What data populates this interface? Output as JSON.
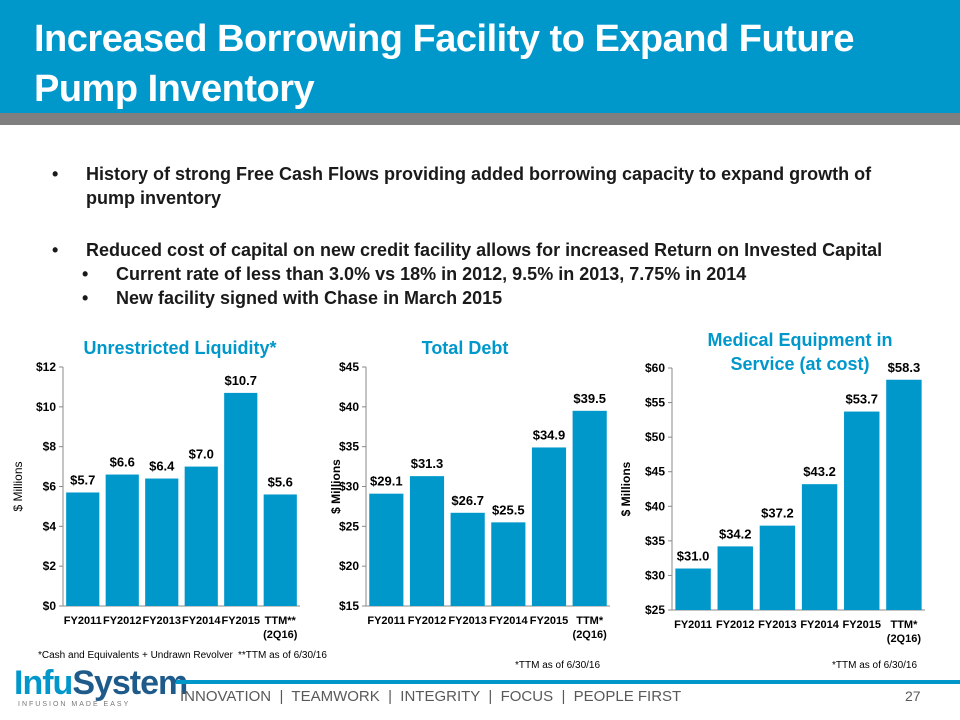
{
  "title": "Increased Borrowing Facility to Expand Future Pump Inventory",
  "bullets": [
    "History of strong Free Cash Flows providing added borrowing capacity to expand growth of pump inventory",
    "Reduced cost of capital on new credit facility allows for increased Return on Invested Capital"
  ],
  "sub_bullets": [
    "Current rate of less than 3.0% vs 18% in 2012, 9.5% in 2013, 7.75% in 2014",
    "New facility signed with Chase in March 2015"
  ],
  "bullet_glyph": "•",
  "colors": {
    "header": "#0097CB",
    "bar": "#0097CB",
    "header_rule": "#7f7f7f"
  },
  "chart_data": [
    {
      "type": "bar",
      "title": "Unrestricted Liquidity*",
      "ylabel": "$ Millions",
      "categories": [
        "FY2011",
        "FY2012",
        "FY2013",
        "FY2014",
        "FY2015",
        "TTM**\n(2Q16)"
      ],
      "values": [
        5.7,
        6.6,
        6.4,
        7.0,
        10.7,
        5.6
      ],
      "data_labels": [
        "$5.7",
        "$6.6",
        "$6.4",
        "$7.0",
        "$10.7",
        "$5.6"
      ],
      "ylim": [
        0,
        12
      ],
      "yticks": [
        "$0",
        "$2",
        "$4",
        "$6",
        "$8",
        "$10",
        "$12"
      ],
      "grid": false
    },
    {
      "type": "bar",
      "title": "Total Debt",
      "ylabel": "$ Millions",
      "categories": [
        "FY2011",
        "FY2012",
        "FY2013",
        "FY2014",
        "FY2015",
        "TTM*\n(2Q16)"
      ],
      "values": [
        29.1,
        31.3,
        26.7,
        25.5,
        34.9,
        39.5
      ],
      "data_labels": [
        "$29.1",
        "$31.3",
        "$26.7",
        "$25.5",
        "$34.9",
        "$39.5"
      ],
      "ylim": [
        15,
        45
      ],
      "yticks": [
        "$15",
        "$20",
        "$25",
        "$30",
        "$35",
        "$40",
        "$45"
      ],
      "grid": false
    },
    {
      "type": "bar",
      "title": "Medical Equipment in Service (at cost)",
      "ylabel": "$ Millions",
      "categories": [
        "FY2011",
        "FY2012",
        "FY2013",
        "FY2014",
        "FY2015",
        "TTM*\n(2Q16)"
      ],
      "values": [
        31.0,
        34.2,
        37.2,
        43.2,
        53.7,
        58.3
      ],
      "data_labels": [
        "$31.0",
        "$34.2",
        "$37.2",
        "$43.2",
        "$53.7",
        "$58.3"
      ],
      "ylim": [
        25,
        60
      ],
      "yticks": [
        "$25",
        "$30",
        "$35",
        "$40",
        "$45",
        "$50",
        "$55",
        "$60"
      ],
      "grid": false
    }
  ],
  "notes": {
    "liquidity_def": "*Cash and Equivalents + Undrawn Revolver",
    "ttm1": "**TTM as of 6/30/16",
    "ttm2": "*TTM as of 6/30/16",
    "ttm3": "*TTM as of 6/30/16"
  },
  "footer": {
    "logo_text": "InfuSystem",
    "tagline": "INFUSION MADE EASY",
    "values": "INNOVATION  |  TEAMWORK  |  INTEGRITY  |  FOCUS  |  PEOPLE FIRST",
    "page": "27"
  }
}
